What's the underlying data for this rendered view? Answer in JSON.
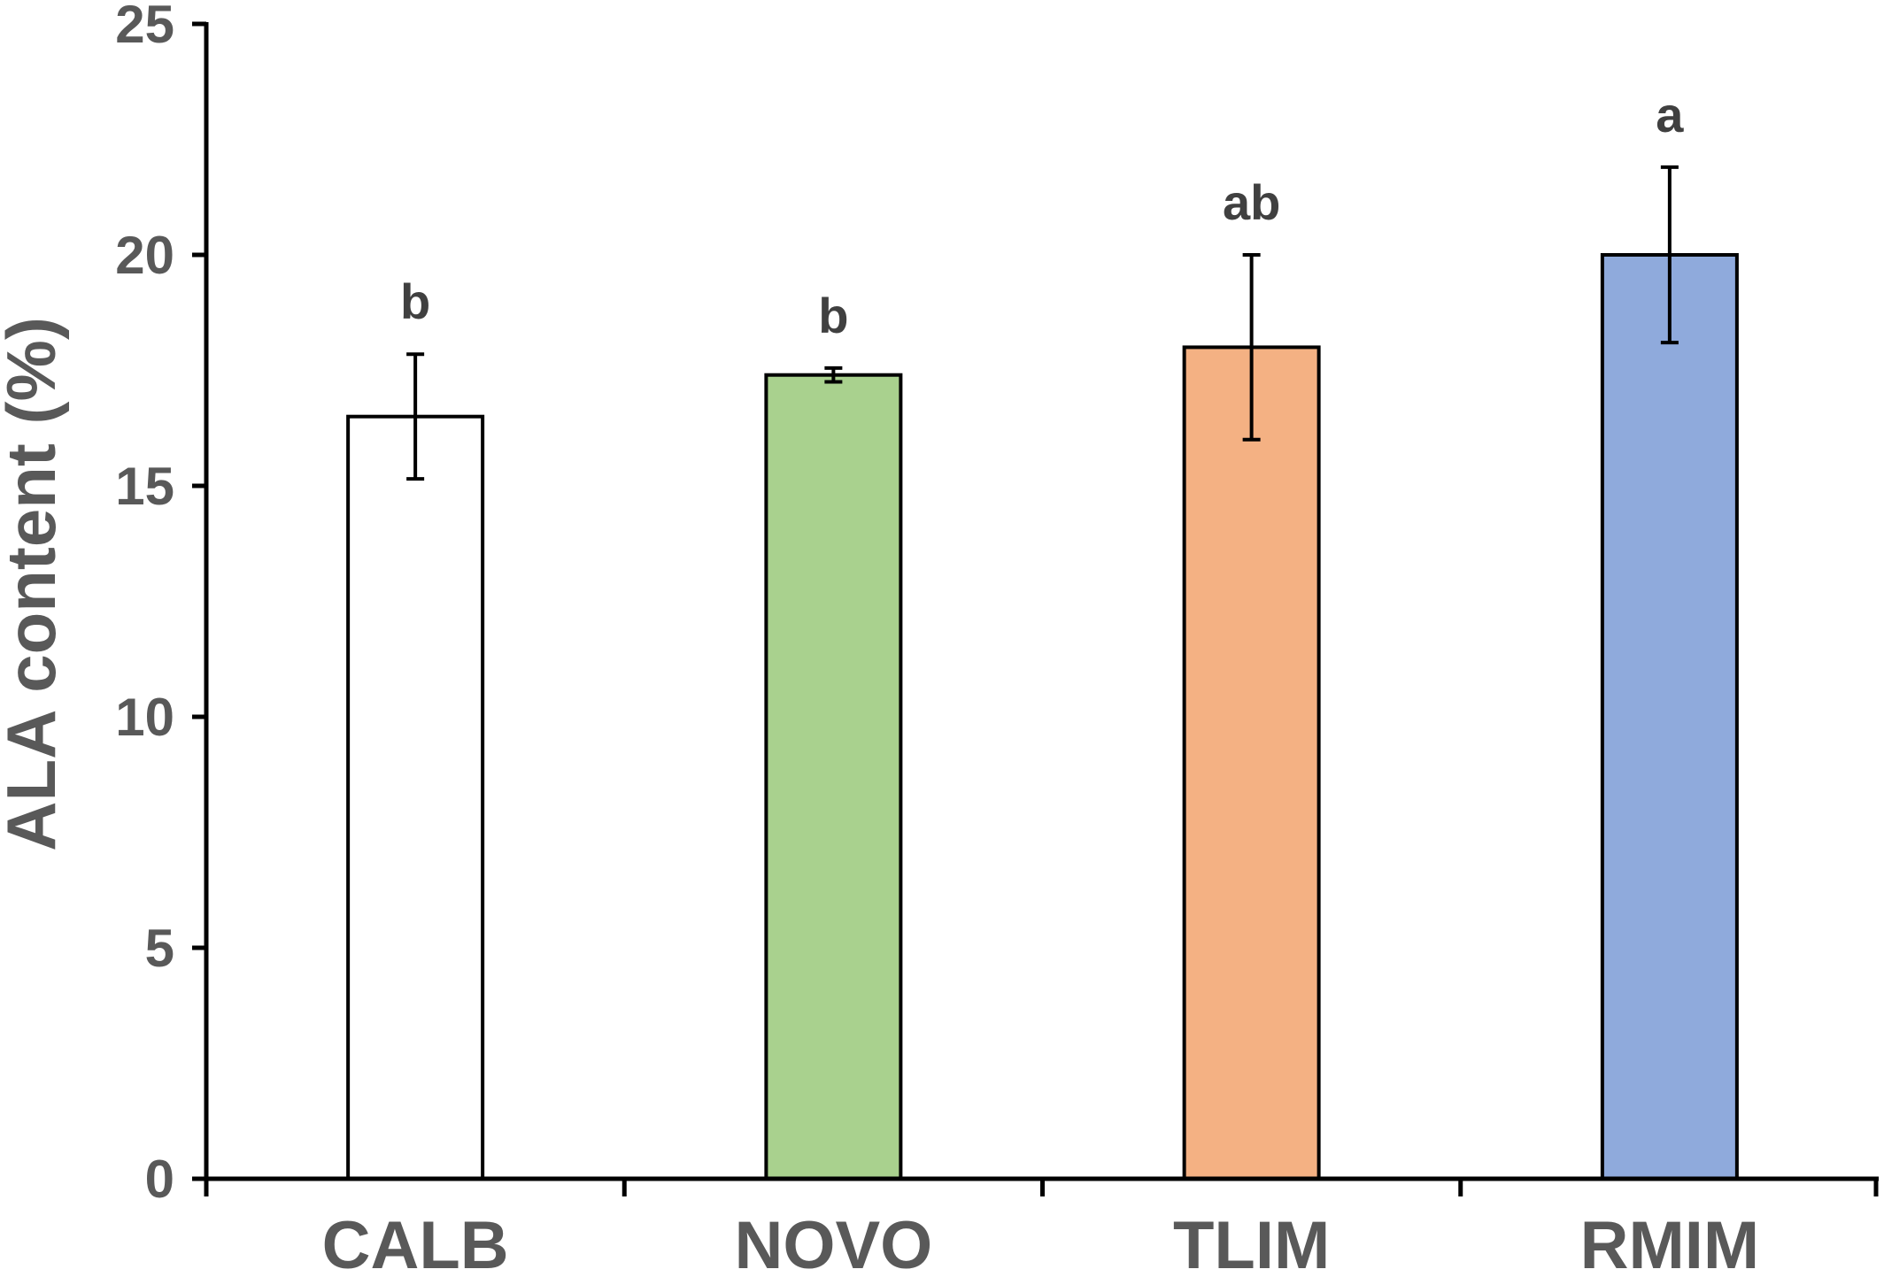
{
  "chart_data": {
    "type": "bar",
    "title": "",
    "xlabel": "",
    "ylabel": "ALA content (%)",
    "ylim": [
      0,
      25
    ],
    "yticks": [
      0,
      5,
      10,
      15,
      20,
      25
    ],
    "grid": false,
    "legend": "none",
    "categories": [
      "CALB",
      "NOVO",
      "TLIM",
      "RMIM"
    ],
    "values": [
      16.5,
      17.4,
      18.0,
      20.0
    ],
    "errors": [
      1.35,
      0.15,
      2.0,
      1.9
    ],
    "significance": [
      "b",
      "b",
      "ab",
      "a"
    ],
    "colors": [
      "#ffffff",
      "#a9d18e",
      "#f4b183",
      "#8faadc"
    ]
  }
}
